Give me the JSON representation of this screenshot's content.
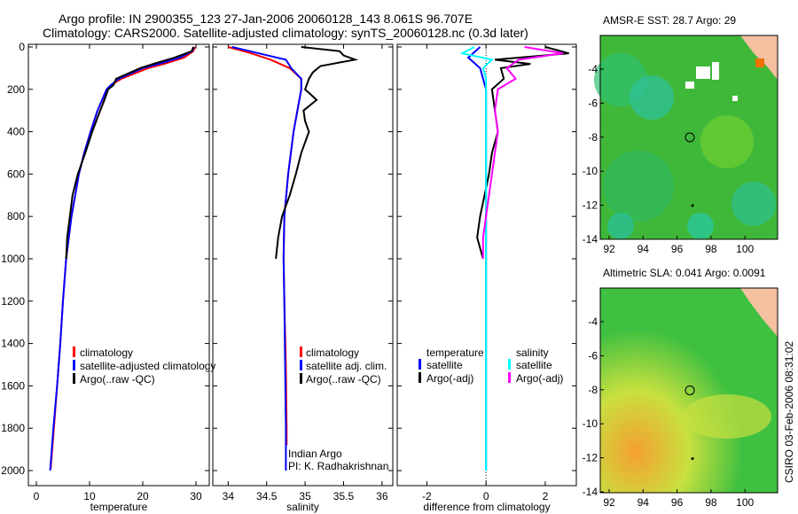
{
  "title_line1": "Argo profile: IN 2900355_123 27-Jan-2006 20060128_143 8.061S 96.707E",
  "title_line2": "Climatology: CARS2000. Satellite-adjusted climatology: synTS_20060128.nc (0.3d later)",
  "side_label": "CSIRO 03-Feb-2006 08:31:02",
  "colors": {
    "climatology": "#ff0000",
    "satellite": "#0000ff",
    "argo": "#000000",
    "sal_sat": "#00ffff",
    "sal_argo": "#ff00ff"
  },
  "chart_data": [
    {
      "type": "line",
      "xlabel": "temperature",
      "ylabel": "",
      "xlim": [
        -1.5,
        32.5
      ],
      "ylim": [
        2050,
        0
      ],
      "xticks": [
        "0",
        "10",
        "20",
        "30"
      ],
      "xtick_values": [
        0,
        10,
        20,
        30
      ],
      "yticks": [
        "0",
        "200",
        "400",
        "600",
        "800",
        "1000",
        "1200",
        "1400",
        "1600",
        "1800",
        "2000"
      ],
      "legend": [
        "climatology",
        "satellite-adjusted climatology",
        "Argo(..raw -QC)"
      ],
      "series": [
        {
          "name": "climatology",
          "color": "#ff0000",
          "depth": [
            0,
            20,
            50,
            80,
            100,
            150,
            180,
            200,
            300,
            400,
            500,
            600,
            800,
            1000,
            1200,
            1400,
            1600,
            1800,
            1990
          ],
          "values": [
            29.8,
            29.5,
            27.8,
            24,
            21,
            16,
            14,
            13.3,
            11.5,
            10.2,
            9,
            8,
            6.6,
            5.6,
            5,
            4.5,
            3.9,
            3.3,
            2.7
          ]
        },
        {
          "name": "satellite",
          "color": "#0000ff",
          "depth": [
            0,
            20,
            50,
            80,
            100,
            150,
            180,
            200,
            300,
            400,
            500,
            600,
            800,
            1000,
            1200,
            1400,
            1600,
            1800,
            2000
          ],
          "values": [
            29.6,
            29.3,
            27,
            23,
            20,
            15.5,
            14,
            13.2,
            11.5,
            10.2,
            9,
            8,
            6.6,
            5.6,
            5,
            4.5,
            3.9,
            3.2,
            2.6
          ]
        },
        {
          "name": "Argo",
          "color": "#000000",
          "depth": [
            0,
            20,
            50,
            80,
            100,
            150,
            180,
            200,
            250,
            300,
            400,
            500,
            600,
            700,
            800,
            900,
            1000
          ],
          "values": [
            29.5,
            29.2,
            26,
            22,
            19.5,
            15,
            14.5,
            13.5,
            12.8,
            12,
            10.5,
            9.2,
            7.8,
            6.8,
            6.3,
            5.8,
            5.6
          ]
        }
      ]
    },
    {
      "type": "line",
      "xlabel": "salinity",
      "xlim": [
        33.8,
        36.14
      ],
      "ylim": [
        2050,
        0
      ],
      "xticks": [
        "34",
        "34.5",
        "35",
        "35.5",
        "36"
      ],
      "xtick_values": [
        34,
        34.5,
        35,
        35.5,
        36
      ],
      "legend": [
        "climatology",
        "satellite adj. clim.",
        "Argo(..raw -QC)"
      ],
      "annotation": [
        "Indian Argo",
        "PI: K. Radhakrishnan"
      ],
      "series": [
        {
          "name": "climatology",
          "color": "#ff0000",
          "depth": [
            0,
            30,
            60,
            100,
            150,
            200,
            300,
            400,
            600,
            800,
            1000,
            1200,
            1500,
            1800,
            1880
          ],
          "values": [
            34.0,
            34.3,
            34.55,
            34.8,
            34.95,
            34.95,
            34.9,
            34.85,
            34.78,
            34.73,
            34.72,
            34.73,
            34.75,
            34.76,
            34.76
          ]
        },
        {
          "name": "satellite",
          "color": "#0000ff",
          "depth": [
            0,
            30,
            60,
            100,
            150,
            200,
            300,
            400,
            600,
            800,
            1000,
            1200,
            1500,
            1800,
            2000
          ],
          "values": [
            34.05,
            34.4,
            34.75,
            34.82,
            34.95,
            34.95,
            34.9,
            34.85,
            34.78,
            34.73,
            34.72,
            34.73,
            34.74,
            34.75,
            34.75
          ]
        },
        {
          "name": "Argo",
          "color": "#000000",
          "depth": [
            0,
            20,
            40,
            60,
            90,
            120,
            150,
            200,
            250,
            300,
            350,
            400,
            500,
            600,
            700,
            800,
            900,
            1000
          ],
          "values": [
            34.95,
            35.45,
            35.5,
            35.65,
            35.2,
            35.1,
            35.05,
            35.0,
            35.15,
            34.98,
            35.0,
            35.05,
            34.95,
            34.88,
            34.8,
            34.7,
            34.65,
            34.62
          ]
        }
      ]
    },
    {
      "type": "line",
      "xlabel": "difference from climatology",
      "xlim": [
        -3,
        3.05
      ],
      "ylim": [
        2050,
        0
      ],
      "xticks": [
        "-2",
        "0",
        "2"
      ],
      "xtick_values": [
        -2,
        0,
        2
      ],
      "legend_temperature": {
        "heading": "temperature",
        "items": [
          "satellite",
          "Argo(-adj)"
        ]
      },
      "legend_salinity": {
        "heading": "salinity",
        "items": [
          "satellite",
          "Argo(-adj)"
        ]
      },
      "series": [
        {
          "name": "temp satellite",
          "color": "#0000ff",
          "depth": [
            0,
            50,
            100,
            200,
            400,
            1000,
            2000
          ],
          "values": [
            -0.2,
            -0.6,
            -0.2,
            0,
            0,
            0,
            0
          ]
        },
        {
          "name": "temp Argo",
          "color": "#000000",
          "depth": [
            0,
            30,
            60,
            80,
            100,
            150,
            200,
            300,
            400,
            500,
            600,
            800,
            900,
            1000
          ],
          "values": [
            2.0,
            2.8,
            0.3,
            1.5,
            0.5,
            0.6,
            0.2,
            0.3,
            0.4,
            0.2,
            0.1,
            -0.2,
            -0.3,
            -0.1
          ]
        },
        {
          "name": "sal satellite",
          "color": "#00ffff",
          "depth": [
            0,
            30,
            60,
            100,
            150,
            200,
            400,
            1000,
            2000
          ],
          "values": [
            -0.4,
            -0.8,
            0.2,
            -0.1,
            0,
            0,
            0,
            0,
            0
          ]
        },
        {
          "name": "sal Argo",
          "color": "#ff00ff",
          "depth": [
            0,
            30,
            60,
            100,
            150,
            200,
            300,
            400,
            600,
            800,
            900,
            1000
          ],
          "values": [
            1.3,
            2.6,
            1.1,
            0.7,
            1.0,
            0.4,
            0.3,
            0.4,
            0.2,
            0,
            -0.1,
            -0.1
          ]
        }
      ]
    }
  ],
  "maps": [
    {
      "title": "AMSR-E SST: 28.7 Argo: 29",
      "xticks": [
        "92",
        "94",
        "96",
        "98",
        "100"
      ],
      "yticks": [
        "-4",
        "-6",
        "-8",
        "-10",
        "-12",
        "-14"
      ]
    },
    {
      "title": "Altimetric SLA: 0.041 Argo: 0.0091",
      "xticks": [
        "92",
        "94",
        "96",
        "98",
        "100"
      ],
      "yticks": [
        "-4",
        "-6",
        "-8",
        "-10",
        "-12",
        "-14"
      ]
    }
  ]
}
